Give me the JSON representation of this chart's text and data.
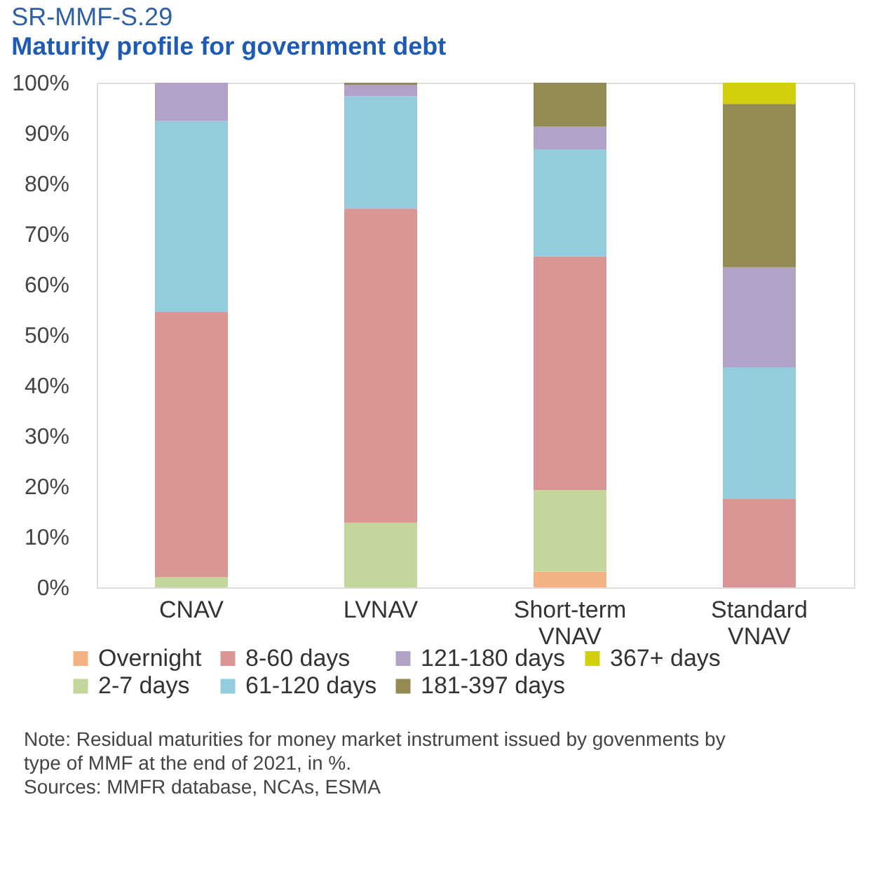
{
  "chart_data": {
    "type": "bar",
    "stacked": true,
    "title": "SR-MMF-S.29",
    "subtitle": "Maturity profile for government debt",
    "categories": [
      "CNAV",
      "LVNAV",
      "Short-term VNAV",
      "Standard VNAV"
    ],
    "series": [
      {
        "name": "Overnight",
        "color": "#f4b183",
        "values": [
          0,
          0,
          3.1,
          0
        ]
      },
      {
        "name": "2-7 days",
        "color": "#c3d69b",
        "values": [
          2,
          12.8,
          16.2,
          0
        ]
      },
      {
        "name": "8-60 days",
        "color": "#d99694",
        "values": [
          52.6,
          62.3,
          46.3,
          17.5
        ]
      },
      {
        "name": "61-120 days",
        "color": "#93cddd",
        "values": [
          37.8,
          22.2,
          21.2,
          26.1
        ]
      },
      {
        "name": "121-180 days",
        "color": "#b3a2c7",
        "values": [
          7.6,
          2.3,
          4.5,
          19.8
        ]
      },
      {
        "name": "181-397 days",
        "color": "#948a54",
        "values": [
          0,
          0.4,
          8.7,
          32.4
        ]
      },
      {
        "name": "367+ days",
        "color": "#d4cf0c",
        "values": [
          0,
          0,
          0,
          4.2
        ]
      }
    ],
    "ylim": [
      0,
      100
    ],
    "yticks": [
      {
        "value": 0,
        "label": "0%"
      },
      {
        "value": 10,
        "label": "10%"
      },
      {
        "value": 20,
        "label": "20%"
      },
      {
        "value": 30,
        "label": "30%"
      },
      {
        "value": 40,
        "label": "40%"
      },
      {
        "value": 50,
        "label": "50%"
      },
      {
        "value": 60,
        "label": "60%"
      },
      {
        "value": 70,
        "label": "70%"
      },
      {
        "value": 80,
        "label": "80%"
      },
      {
        "value": 90,
        "label": "90%"
      },
      {
        "value": 100,
        "label": "100%"
      }
    ],
    "grid": false,
    "legend": "bottom",
    "annotations": [
      "Note: Residual maturities for money market instrument issued by govenments by type of MMF at the end of 2021, in %.",
      "Sources: MMFR database, NCAs, ESMA"
    ]
  }
}
